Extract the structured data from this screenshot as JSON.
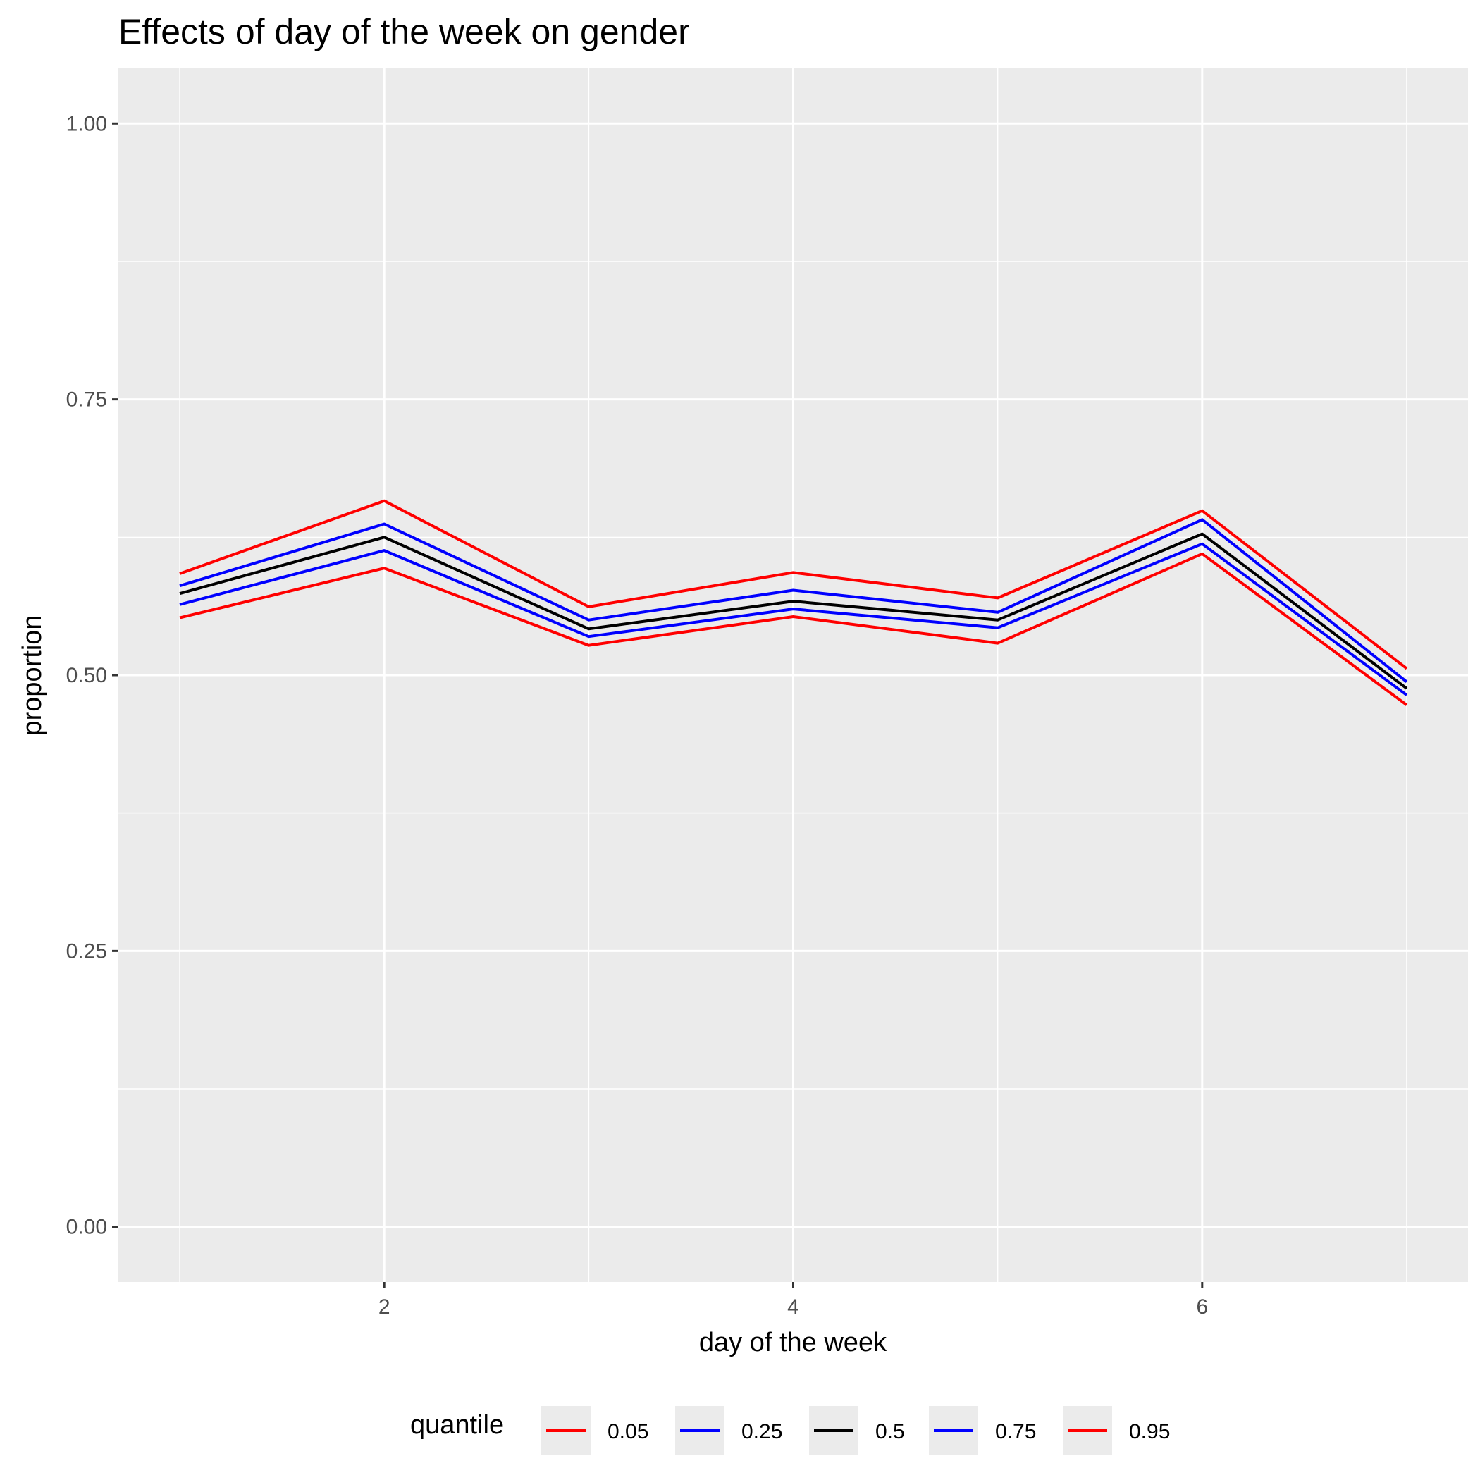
{
  "chart_data": {
    "type": "line",
    "title": "Effects of day of the week on gender",
    "xlabel": "day of the week",
    "ylabel": "proportion",
    "xlim": [
      0.7,
      7.3
    ],
    "ylim": [
      -0.05,
      1.05
    ],
    "x_ticks": [
      2,
      4,
      6
    ],
    "x_tick_labels": [
      "2",
      "4",
      "6"
    ],
    "x_minor_ticks": [
      1,
      3,
      5,
      7
    ],
    "y_ticks": [
      0,
      0.25,
      0.5,
      0.75,
      1
    ],
    "y_tick_labels": [
      "0.00",
      "0.25",
      "0.50",
      "0.75",
      "1.00"
    ],
    "y_minor_ticks": [
      0.125,
      0.375,
      0.625,
      0.875
    ],
    "grid": true,
    "legend": {
      "title": "quantile",
      "position": "bottom"
    },
    "x": [
      1,
      2,
      3,
      4,
      5,
      6,
      7
    ],
    "series": [
      {
        "name": "0.05",
        "color": "#ff0000",
        "values": [
          0.552,
          0.597,
          0.527,
          0.553,
          0.529,
          0.61,
          0.473
        ]
      },
      {
        "name": "0.25",
        "color": "#0000ff",
        "values": [
          0.564,
          0.613,
          0.535,
          0.56,
          0.543,
          0.619,
          0.482
        ]
      },
      {
        "name": "0.5",
        "color": "#000000",
        "values": [
          0.574,
          0.625,
          0.542,
          0.567,
          0.55,
          0.628,
          0.488
        ]
      },
      {
        "name": "0.75",
        "color": "#0000ff",
        "values": [
          0.581,
          0.637,
          0.55,
          0.577,
          0.557,
          0.641,
          0.494
        ]
      },
      {
        "name": "0.95",
        "color": "#ff0000",
        "values": [
          0.592,
          0.658,
          0.562,
          0.593,
          0.57,
          0.649,
          0.506
        ]
      }
    ]
  }
}
